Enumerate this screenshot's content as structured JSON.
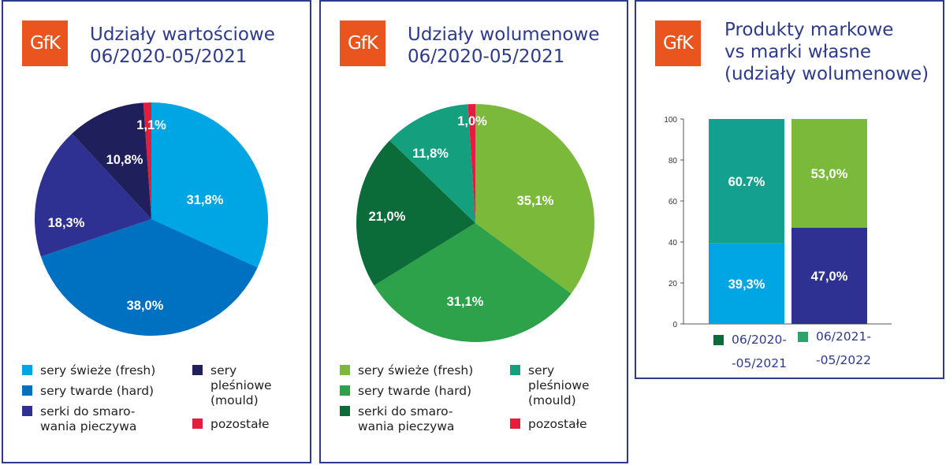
{
  "logo_text": "GfK",
  "panels": [
    {
      "title": "Udziały wartościowe\n06/2020-05/2021",
      "chart_data": {
        "type": "pie",
        "labels": [
          "sery świeże (fresh)",
          "sery twarde (hard)",
          "serki do smaro-\nwania pieczywa",
          "sery\npleśniowe\n(mould)",
          "pozostałe"
        ],
        "values": [
          31.8,
          38.0,
          18.3,
          10.8,
          1.1
        ],
        "value_labels": [
          "31,8%",
          "38,0%",
          "18,3%",
          "10,8%",
          "1,1%"
        ],
        "colors": [
          "#00a5e3",
          "#0070c0",
          "#2e3192",
          "#1f1f5c",
          "#e31e3c"
        ]
      }
    },
    {
      "title": "Udziały wolumenowe\n06/2020-05/2021",
      "chart_data": {
        "type": "pie",
        "labels": [
          "sery świeże (fresh)",
          "sery twarde (hard)",
          "serki do smaro-\nwania pieczywa",
          "sery\npleśniowe\n(mould)",
          "pozostałe"
        ],
        "values": [
          35.1,
          31.1,
          21.0,
          11.8,
          1.0
        ],
        "value_labels": [
          "35,1%",
          "31,1%",
          "21,0%",
          "11,8%",
          "1,0%"
        ],
        "colors": [
          "#7bb93a",
          "#2ea24a",
          "#0b6b39",
          "#14a07f",
          "#e31e3c"
        ]
      }
    },
    {
      "title": "Produkty markowe\nvs marki własne\n(udziały wolumenowe)",
      "chart_data": {
        "type": "bar",
        "stacked": true,
        "categories": [
          "06/2020-05/2021",
          "06/2021-05/2022"
        ],
        "series": [
          {
            "values": [
              39.3,
              47.0
            ],
            "value_labels": [
              "39,3%",
              "47,0%"
            ],
            "colors": [
              "#00a5e3",
              "#2e3192"
            ]
          },
          {
            "values": [
              60.7,
              53.0
            ],
            "value_labels": [
              "60.7%",
              "53,0%"
            ],
            "colors": [
              "#14a08f",
              "#7bb93a"
            ]
          }
        ],
        "ylim": [
          0,
          100
        ],
        "yticks": [
          0,
          20,
          40,
          60,
          80,
          100
        ],
        "legend": [
          {
            "label": "06/2020-\n-05/2021",
            "color": "#0b6b39"
          },
          {
            "label": "06/2021-\n-05/2022",
            "color": "#2ea26a"
          }
        ]
      }
    }
  ]
}
